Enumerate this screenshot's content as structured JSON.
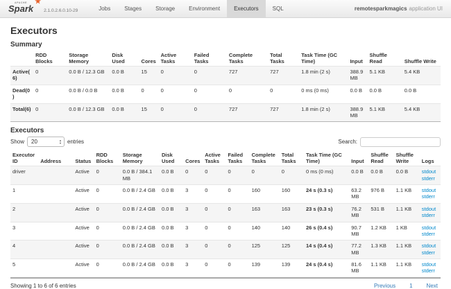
{
  "navbar": {
    "logo_text": "Spark",
    "logo_super": "APACHE",
    "version": "2.1.0.2.6.0.10-29",
    "tabs": [
      {
        "label": "Jobs",
        "active": false
      },
      {
        "label": "Stages",
        "active": false
      },
      {
        "label": "Storage",
        "active": false
      },
      {
        "label": "Environment",
        "active": false
      },
      {
        "label": "Executors",
        "active": true
      },
      {
        "label": "SQL",
        "active": false
      }
    ],
    "app_name": "remotesparkmagics",
    "app_suffix": "application UI"
  },
  "page": {
    "title": "Executors"
  },
  "summary": {
    "heading": "Summary",
    "columns": [
      "",
      "RDD Blocks",
      "Storage Memory",
      "Disk Used",
      "Cores",
      "Active Tasks",
      "Failed Tasks",
      "Complete Tasks",
      "Total Tasks",
      "Task Time (GC Time)",
      "Input",
      "Shuffle Read",
      "Shuffle Write"
    ],
    "rows": [
      {
        "label": "Active(6)",
        "cells": [
          "0",
          "0.0 B / 12.3 GB",
          "0.0 B",
          "15",
          "0",
          "0",
          "727",
          "727",
          "1.8 min (2 s)",
          "388.9 MB",
          "5.1 KB",
          "5.4 KB"
        ]
      },
      {
        "label": "Dead(0)",
        "cells": [
          "0",
          "0.0 B / 0.0 B",
          "0.0 B",
          "0",
          "0",
          "0",
          "0",
          "0",
          "0 ms (0 ms)",
          "0.0 B",
          "0.0 B",
          "0.0 B"
        ]
      },
      {
        "label": "Total(6)",
        "cells": [
          "0",
          "0.0 B / 12.3 GB",
          "0.0 B",
          "15",
          "0",
          "0",
          "727",
          "727",
          "1.8 min (2 s)",
          "388.9 MB",
          "5.1 KB",
          "5.4 KB"
        ]
      }
    ]
  },
  "executors": {
    "heading": "Executors",
    "show_label": "Show",
    "entries_value": "20",
    "entries_label": "entries",
    "search_label": "Search:",
    "columns": [
      "Executor ID",
      "Address",
      "Status",
      "RDD Blocks",
      "Storage Memory",
      "Disk Used",
      "Cores",
      "Active Tasks",
      "Failed Tasks",
      "Complete Tasks",
      "Total Tasks",
      "Task Time (GC Time)",
      "Input",
      "Shuffle Read",
      "Shuffle Write",
      "Logs"
    ],
    "rows": [
      {
        "cells": [
          "driver",
          "",
          "Active",
          "0",
          "0.0 B / 384.1 MB",
          "0.0 B",
          "0",
          "0",
          "0",
          "0",
          "0",
          "0 ms (0 ms)",
          "0.0 B",
          "0.0 B",
          "0.0 B"
        ],
        "logs": [
          "stdout",
          "stderr"
        ]
      },
      {
        "cells": [
          "1",
          "",
          "Active",
          "0",
          "0.0 B / 2.4 GB",
          "0.0 B",
          "3",
          "0",
          "0",
          "160",
          "160",
          "24 s (0.3 s)",
          "63.2 MB",
          "976 B",
          "1.1 KB"
        ],
        "logs": [
          "stdout",
          "stderr"
        ]
      },
      {
        "cells": [
          "2",
          "",
          "Active",
          "0",
          "0.0 B / 2.4 GB",
          "0.0 B",
          "3",
          "0",
          "0",
          "163",
          "163",
          "23 s (0.3 s)",
          "76.2 MB",
          "531 B",
          "1.1 KB"
        ],
        "logs": [
          "stdout",
          "stderr"
        ]
      },
      {
        "cells": [
          "3",
          "",
          "Active",
          "0",
          "0.0 B / 2.4 GB",
          "0.0 B",
          "3",
          "0",
          "0",
          "140",
          "140",
          "26 s (0.4 s)",
          "90.7 MB",
          "1.2 KB",
          "1 KB"
        ],
        "logs": [
          "stdout",
          "stderr"
        ]
      },
      {
        "cells": [
          "4",
          "",
          "Active",
          "0",
          "0.0 B / 2.4 GB",
          "0.0 B",
          "3",
          "0",
          "0",
          "125",
          "125",
          "14 s (0.4 s)",
          "77.2 MB",
          "1.3 KB",
          "1.1 KB"
        ],
        "logs": [
          "stdout",
          "stderr"
        ]
      },
      {
        "cells": [
          "5",
          "",
          "Active",
          "0",
          "0.0 B / 2.4 GB",
          "0.0 B",
          "3",
          "0",
          "0",
          "139",
          "139",
          "24 s (0.4 s)",
          "81.6 MB",
          "1.1 KB",
          "1.1 KB"
        ],
        "logs": [
          "stdout",
          "stderr"
        ]
      }
    ],
    "footer": {
      "info": "Showing 1 to 6 of 6 entries",
      "pagination": [
        "Previous",
        "1",
        "Next"
      ]
    }
  },
  "colors": {
    "link_blue": "#0088cc",
    "pagination_blue": "#337ab7",
    "spark_orange": "#e8622c",
    "stripe_gray": "#f5f5f5",
    "navbar_active_tab": "#d9d9d9"
  }
}
